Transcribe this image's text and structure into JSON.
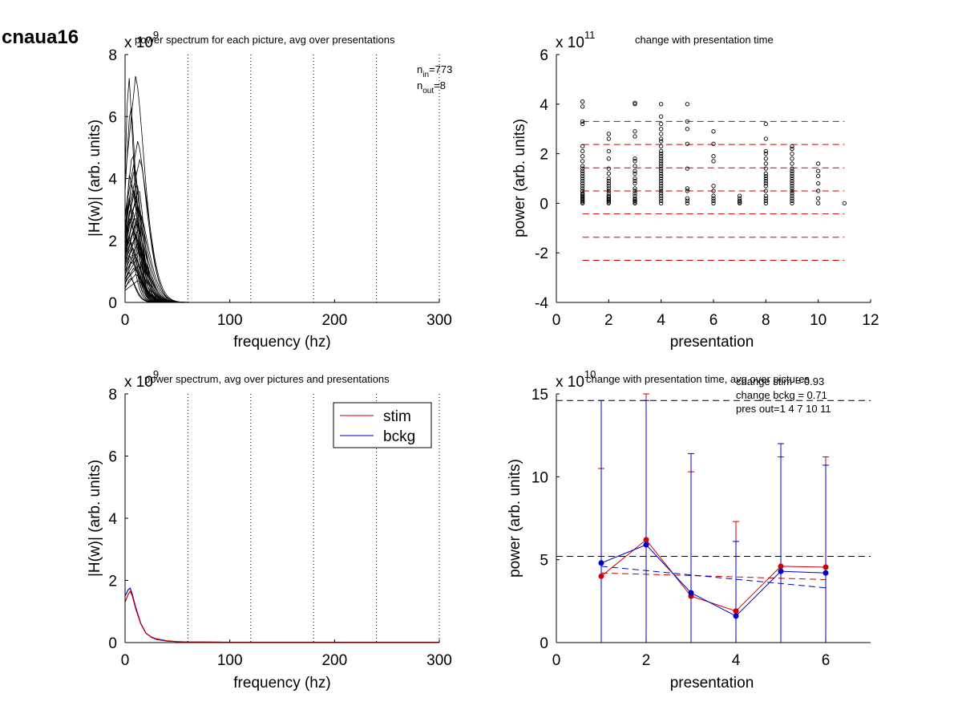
{
  "figure_label": "cnaua16",
  "chart_data": [
    {
      "type": "line",
      "title": "power spectrum for each picture, avg over presentations",
      "xlabel": "frequency (hz)",
      "ylabel": "|H(w)| (arb. units)",
      "exponent": "9",
      "xlim": [
        0,
        300
      ],
      "ylim": [
        0,
        8
      ],
      "xticks": [
        0,
        100,
        200,
        300
      ],
      "yticks": [
        0,
        2,
        4,
        6,
        8
      ],
      "vlines": [
        60,
        120,
        180,
        240,
        300
      ],
      "annotations": {
        "n_in_base": "n",
        "n_in_sub": "in",
        "n_in_val": "=773",
        "n_out_base": "n",
        "n_out_sub": "out",
        "n_out_val": "=8"
      },
      "series_style": {
        "color": "#000000",
        "peaks": [
          7.5,
          7.3,
          6.5,
          5.2,
          4.9,
          4.6,
          4.4,
          4.1,
          3.9,
          3.8,
          3.7,
          3.6,
          3.5,
          3.3,
          3.2,
          3.1,
          3.0,
          2.9,
          2.8,
          2.7,
          2.6,
          2.5,
          2.4,
          2.3,
          2.2,
          2.1,
          2.0,
          1.9,
          1.8,
          1.7,
          1.6,
          1.5,
          1.4,
          1.3,
          1.2,
          1.1,
          1.0,
          0.9,
          0.8,
          0.7
        ]
      }
    },
    {
      "type": "scatter",
      "title": "change with presentation time",
      "xlabel": "presentation",
      "ylabel": "power (arb. units)",
      "exponent": "11",
      "xlim": [
        0,
        12
      ],
      "ylim": [
        -4,
        6
      ],
      "xticks": [
        0,
        2,
        4,
        6,
        8,
        10,
        12
      ],
      "yticks": [
        -4,
        -2,
        0,
        2,
        4,
        6
      ],
      "hlines": [
        3.3,
        2.37,
        1.43,
        0.5,
        -0.43,
        -1.37,
        -2.3
      ],
      "hline_color": "#cc0000",
      "points": [
        {
          "x": 1,
          "y": [
            4.1,
            3.9,
            3.3,
            3.2,
            2.3,
            2.1,
            1.9,
            1.7,
            1.5,
            1.4,
            1.3,
            1.2,
            1.1,
            1.0,
            0.9,
            0.8,
            0.7,
            0.6,
            0.5,
            0.4,
            0.35,
            0.3,
            0.25,
            0.2,
            0.15,
            0.1,
            0.05,
            0.0
          ]
        },
        {
          "x": 2,
          "y": [
            2.8,
            2.6,
            2.1,
            1.8,
            1.4,
            1.2,
            1.0,
            0.9,
            0.8,
            0.7,
            0.6,
            0.5,
            0.4,
            0.3,
            0.25,
            0.2,
            0.15,
            0.1,
            0.05,
            0.0
          ]
        },
        {
          "x": 3,
          "y": [
            4.05,
            4.0,
            2.9,
            2.7,
            1.8,
            1.7,
            1.5,
            1.3,
            1.2,
            1.0,
            0.9,
            0.8,
            0.6,
            0.5,
            0.4,
            0.3,
            0.2,
            0.15,
            0.1,
            0.05,
            0.0
          ]
        },
        {
          "x": 4,
          "y": [
            4.0,
            3.5,
            3.2,
            3.0,
            2.8,
            2.6,
            2.5,
            2.3,
            2.1,
            2.0,
            1.9,
            1.8,
            1.7,
            1.6,
            1.5,
            1.4,
            1.3,
            1.2,
            1.1,
            1.0,
            0.9,
            0.8,
            0.7,
            0.6,
            0.5,
            0.4,
            0.3,
            0.2,
            0.1,
            0.0
          ]
        },
        {
          "x": 5,
          "y": [
            4.0,
            3.3,
            3.0,
            2.4,
            1.4,
            0.6,
            0.5,
            0.2,
            0.1,
            0.0
          ]
        },
        {
          "x": 6,
          "y": [
            2.9,
            2.4,
            1.9,
            1.7,
            0.7,
            0.5,
            0.3,
            0.2,
            0.1,
            0.0
          ]
        },
        {
          "x": 7,
          "y": [
            0.3,
            0.2,
            0.1,
            0.05,
            0.0
          ]
        },
        {
          "x": 8,
          "y": [
            3.2,
            2.6,
            2.1,
            2.0,
            1.8,
            1.6,
            1.4,
            1.2,
            1.1,
            1.0,
            0.9,
            0.8,
            0.7,
            0.5,
            0.3,
            0.2,
            0.1,
            0.0
          ]
        },
        {
          "x": 9,
          "y": [
            2.3,
            2.2,
            2.0,
            1.8,
            1.6,
            1.4,
            1.3,
            1.2,
            1.1,
            1.0,
            0.9,
            0.8,
            0.7,
            0.6,
            0.5,
            0.4,
            0.3,
            0.2,
            0.1,
            0.0
          ]
        },
        {
          "x": 10,
          "y": [
            1.6,
            1.3,
            1.1,
            0.8,
            0.5,
            0.2,
            0.0
          ]
        },
        {
          "x": 11,
          "y": [
            0.0
          ]
        }
      ]
    },
    {
      "type": "line",
      "title": "power spectrum, avg over pictures and presentations",
      "xlabel": "frequency (hz)",
      "ylabel": "|H(w)| (arb. units)",
      "exponent": "9",
      "xlim": [
        0,
        300
      ],
      "ylim": [
        0,
        8
      ],
      "xticks": [
        0,
        100,
        200,
        300
      ],
      "yticks": [
        0,
        2,
        4,
        6,
        8
      ],
      "vlines": [
        60,
        120,
        180,
        240,
        300
      ],
      "legend": {
        "placement": "top-right"
      },
      "series": [
        {
          "name": "stim",
          "color": "#cc0000",
          "x": [
            0,
            3,
            5,
            7,
            10,
            15,
            20,
            25,
            30,
            40,
            50,
            60,
            100,
            200,
            300
          ],
          "y": [
            1.3,
            1.55,
            1.65,
            1.5,
            1.1,
            0.6,
            0.3,
            0.18,
            0.12,
            0.06,
            0.03,
            0.02,
            0.01,
            0.01,
            0.01
          ]
        },
        {
          "name": "bckg",
          "color": "#0000cc",
          "x": [
            0,
            3,
            5,
            7,
            10,
            15,
            20,
            25,
            30,
            40,
            50,
            60,
            100,
            200,
            300
          ],
          "y": [
            1.5,
            1.7,
            1.75,
            1.55,
            1.15,
            0.62,
            0.3,
            0.17,
            0.1,
            0.05,
            0.03,
            0.02,
            0.01,
            0.01,
            0.01
          ]
        }
      ]
    },
    {
      "type": "line",
      "title": "change with presentation time, avg over pictures",
      "xlabel": "presentation",
      "ylabel": "power (arb. units)",
      "exponent": "10",
      "xlim": [
        0,
        7
      ],
      "ylim": [
        0,
        15
      ],
      "xticks": [
        0,
        2,
        4,
        6
      ],
      "yticks": [
        0,
        5,
        10,
        15
      ],
      "annotations": [
        "change stim = 0.93",
        "change bckg = 0.71",
        "pres out=1 4 7 10 11"
      ],
      "hlines": [
        14.6,
        5.2
      ],
      "series": [
        {
          "name": "stim",
          "color": "#cc0000",
          "x": [
            1,
            2,
            3,
            4,
            5,
            6
          ],
          "y": [
            4.0,
            6.2,
            2.8,
            1.9,
            4.6,
            4.55
          ],
          "err_upper": [
            10.5,
            15.0,
            10.3,
            7.3,
            11.2,
            11.2
          ],
          "fit": [
            4.2,
            3.8
          ]
        },
        {
          "name": "bckg",
          "color": "#0000cc",
          "x": [
            1,
            2,
            3,
            4,
            5,
            6
          ],
          "y": [
            4.8,
            5.9,
            3.0,
            1.6,
            4.3,
            4.2
          ],
          "err_upper": [
            14.6,
            14.6,
            11.4,
            6.1,
            12.0,
            10.7
          ],
          "fit": [
            4.6,
            3.3
          ]
        }
      ]
    }
  ]
}
